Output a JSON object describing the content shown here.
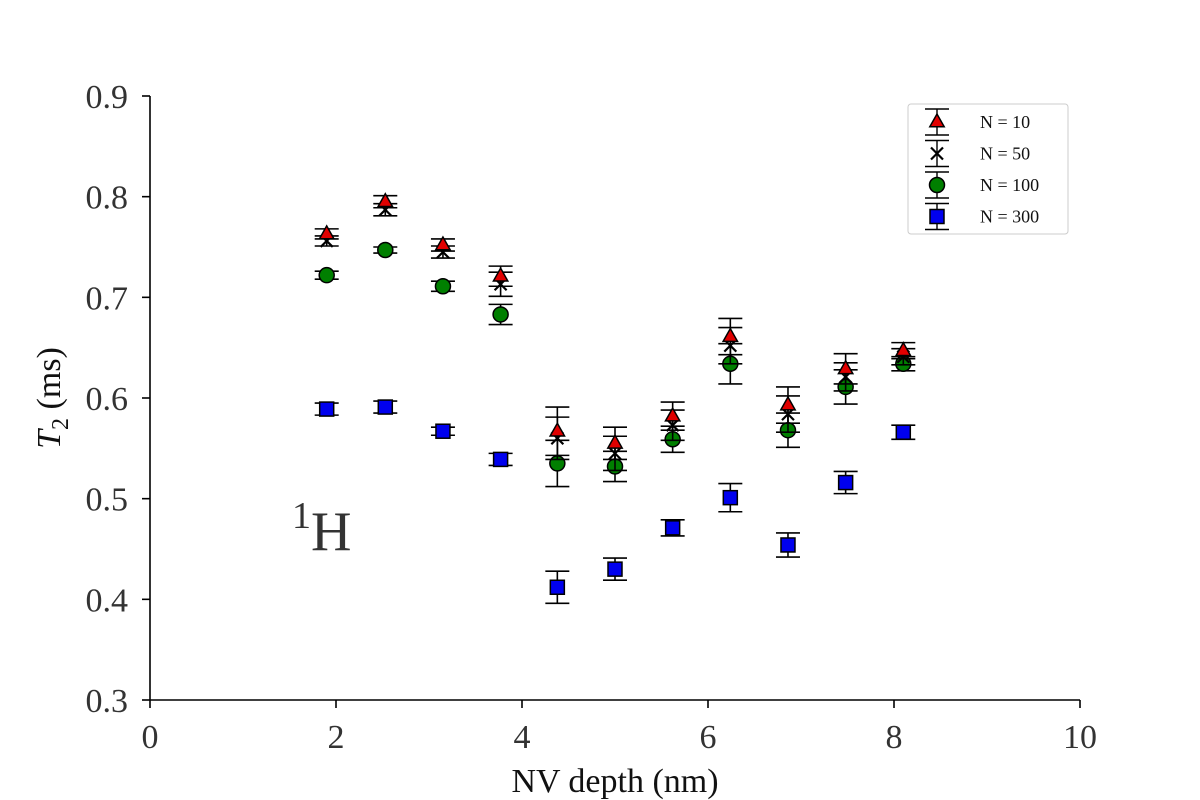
{
  "chart_data": {
    "type": "scatter",
    "title": "",
    "xlabel": "NV depth (nm)",
    "ylabel_parts": {
      "main": "T",
      "sub": "2",
      "unit": " (ms)"
    },
    "xlim": [
      0,
      10
    ],
    "ylim": [
      0.3,
      0.9
    ],
    "xticks": [
      "0",
      "2",
      "4",
      "6",
      "8",
      "10"
    ],
    "yticks": [
      "0.3",
      "0.4",
      "0.5",
      "0.6",
      "0.7",
      "0.8",
      "0.9"
    ],
    "grid": false,
    "legend_position": "top-right",
    "annotation": {
      "sup": "1",
      "text": "H"
    },
    "x": [
      1.9,
      2.53,
      3.15,
      3.77,
      4.38,
      5.0,
      5.62,
      6.24,
      6.86,
      7.48,
      8.1
    ],
    "series": [
      {
        "name": "N = 10",
        "marker": "triangle",
        "color": "#e00000",
        "y": [
          0.763,
          0.795,
          0.752,
          0.721,
          0.567,
          0.555,
          0.582,
          0.661,
          0.593,
          0.629,
          0.647
        ],
        "err": [
          0.005,
          0.006,
          0.006,
          0.01,
          0.024,
          0.016,
          0.014,
          0.018,
          0.018,
          0.015,
          0.008
        ]
      },
      {
        "name": "N = 50",
        "marker": "x",
        "color": "#000000",
        "y": [
          0.756,
          0.787,
          0.745,
          0.713,
          0.56,
          0.545,
          0.573,
          0.652,
          0.584,
          0.621,
          0.641
        ],
        "err": [
          0.005,
          0.006,
          0.006,
          0.012,
          0.021,
          0.017,
          0.015,
          0.018,
          0.018,
          0.014,
          0.008
        ]
      },
      {
        "name": "N = 100",
        "marker": "circle",
        "color": "#007f00",
        "y": [
          0.722,
          0.747,
          0.711,
          0.683,
          0.535,
          0.532,
          0.559,
          0.634,
          0.568,
          0.611,
          0.634
        ],
        "err": [
          0.004,
          0.003,
          0.005,
          0.01,
          0.023,
          0.015,
          0.013,
          0.02,
          0.017,
          0.017,
          0.007
        ]
      },
      {
        "name": "N = 300",
        "marker": "square",
        "color": "#0000ee",
        "y": [
          0.589,
          0.591,
          0.567,
          0.539,
          0.412,
          0.43,
          0.471,
          0.501,
          0.454,
          0.516,
          0.566
        ],
        "err": [
          0.006,
          0.006,
          0.004,
          0.006,
          0.016,
          0.011,
          0.008,
          0.014,
          0.012,
          0.011,
          0.007
        ]
      }
    ]
  }
}
